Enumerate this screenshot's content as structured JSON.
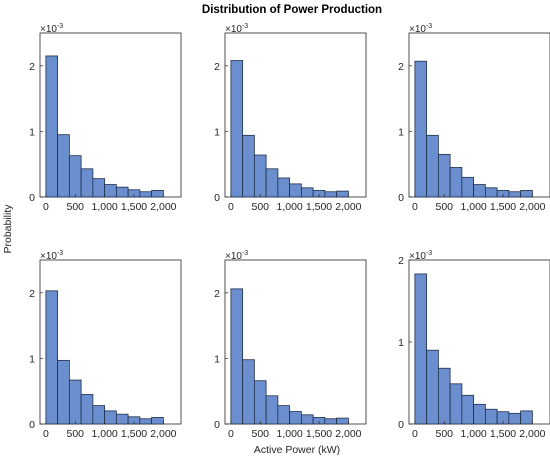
{
  "figure": {
    "title": "Distribution of Power Production",
    "xlabel": "Active Power (kW)",
    "ylabel": "Probability",
    "y_exponent_base": "×10",
    "y_exponent_power": "-3"
  },
  "chart_data": [
    {
      "type": "bar",
      "bin_edges": [
        0,
        200,
        400,
        600,
        800,
        1000,
        1200,
        1400,
        1600,
        1800,
        2000
      ],
      "values": [
        2.15,
        0.95,
        0.63,
        0.43,
        0.28,
        0.19,
        0.15,
        0.11,
        0.08,
        0.1
      ],
      "xlim": [
        -100,
        2300
      ],
      "ylim": [
        0,
        2.5
      ],
      "xticks": [
        0,
        500,
        1000,
        1500,
        2000
      ],
      "xtick_labels": [
        "0",
        "500",
        "1,000",
        "1,500",
        "2,000"
      ],
      "yticks": [
        0,
        1,
        2
      ],
      "ytick_labels": [
        "0",
        "1",
        "2"
      ]
    },
    {
      "type": "bar",
      "bin_edges": [
        0,
        200,
        400,
        600,
        800,
        1000,
        1200,
        1400,
        1600,
        1800,
        2000
      ],
      "values": [
        2.08,
        0.94,
        0.64,
        0.43,
        0.29,
        0.2,
        0.14,
        0.1,
        0.08,
        0.09
      ],
      "xlim": [
        -100,
        2300
      ],
      "ylim": [
        0,
        2.5
      ],
      "xticks": [
        0,
        500,
        1000,
        1500,
        2000
      ],
      "xtick_labels": [
        "0",
        "500",
        "1,000",
        "1,500",
        "2,000"
      ],
      "yticks": [
        0,
        1,
        2
      ],
      "ytick_labels": [
        "0",
        "1",
        "2"
      ]
    },
    {
      "type": "bar",
      "bin_edges": [
        0,
        200,
        400,
        600,
        800,
        1000,
        1200,
        1400,
        1600,
        1800,
        2000
      ],
      "values": [
        2.07,
        0.94,
        0.65,
        0.45,
        0.3,
        0.19,
        0.14,
        0.1,
        0.08,
        0.1
      ],
      "xlim": [
        -100,
        2300
      ],
      "ylim": [
        0,
        2.5
      ],
      "xticks": [
        0,
        500,
        1000,
        1500,
        2000
      ],
      "xtick_labels": [
        "0",
        "500",
        "1,000",
        "1,500",
        "2,000"
      ],
      "yticks": [
        0,
        1,
        2
      ],
      "ytick_labels": [
        "0",
        "1",
        "2"
      ]
    },
    {
      "type": "bar",
      "bin_edges": [
        0,
        200,
        400,
        600,
        800,
        1000,
        1200,
        1400,
        1600,
        1800,
        2000
      ],
      "values": [
        2.03,
        0.97,
        0.67,
        0.45,
        0.28,
        0.2,
        0.15,
        0.11,
        0.08,
        0.1
      ],
      "xlim": [
        -100,
        2300
      ],
      "ylim": [
        0,
        2.5
      ],
      "xticks": [
        0,
        500,
        1000,
        1500,
        2000
      ],
      "xtick_labels": [
        "0",
        "500",
        "1,000",
        "1,500",
        "2,000"
      ],
      "yticks": [
        0,
        1,
        2
      ],
      "ytick_labels": [
        "0",
        "1",
        "2"
      ]
    },
    {
      "type": "bar",
      "bin_edges": [
        0,
        200,
        400,
        600,
        800,
        1000,
        1200,
        1400,
        1600,
        1800,
        2000
      ],
      "values": [
        2.06,
        0.98,
        0.66,
        0.43,
        0.28,
        0.19,
        0.14,
        0.1,
        0.08,
        0.09
      ],
      "xlim": [
        -100,
        2300
      ],
      "ylim": [
        0,
        2.5
      ],
      "xticks": [
        0,
        500,
        1000,
        1500,
        2000
      ],
      "xtick_labels": [
        "0",
        "500",
        "1,000",
        "1,500",
        "2,000"
      ],
      "yticks": [
        0,
        1,
        2
      ],
      "ytick_labels": [
        "0",
        "1",
        "2"
      ]
    },
    {
      "type": "bar",
      "bin_edges": [
        0,
        200,
        400,
        600,
        800,
        1000,
        1200,
        1400,
        1600,
        1800,
        2000
      ],
      "values": [
        1.83,
        0.9,
        0.68,
        0.49,
        0.35,
        0.24,
        0.18,
        0.15,
        0.13,
        0.16
      ],
      "xlim": [
        -100,
        2300
      ],
      "ylim": [
        0,
        2.0
      ],
      "xticks": [
        0,
        500,
        1000,
        1500,
        2000
      ],
      "xtick_labels": [
        "0",
        "500",
        "1,000",
        "1,500",
        "2,000"
      ],
      "yticks": [
        0,
        1,
        2
      ],
      "ytick_labels": [
        "0",
        "1",
        "2"
      ]
    }
  ]
}
